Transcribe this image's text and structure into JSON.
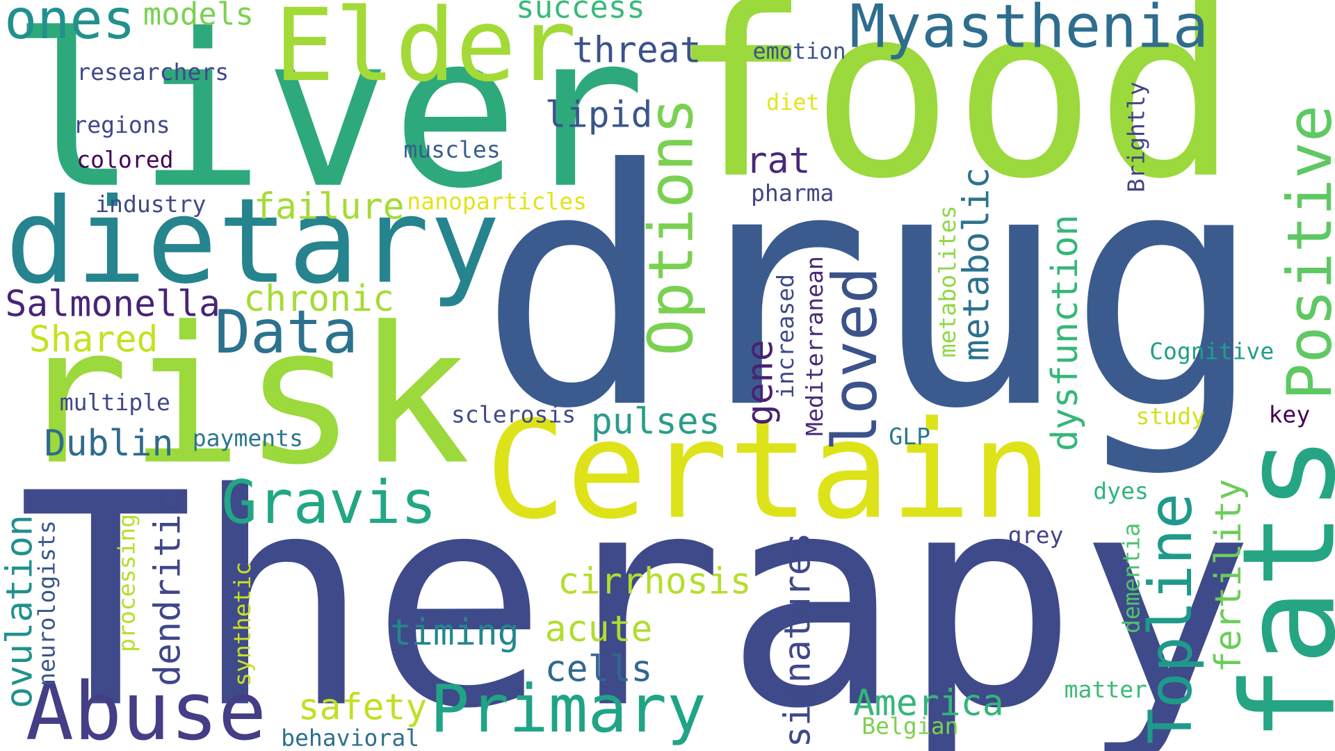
{
  "words": {
    "drug": {
      "text": "drug",
      "color": "#3b5b8f"
    },
    "therapy": {
      "text": "Therapy",
      "color": "#3f4a8a"
    },
    "food": {
      "text": "food",
      "color": "#9bd93c"
    },
    "liver": {
      "text": "liver",
      "color": "#2ea97c"
    },
    "risk": {
      "text": "risk",
      "color": "#9bd93c"
    },
    "dietary": {
      "text": "dietary",
      "color": "#26848e"
    },
    "certain": {
      "text": "Certain",
      "color": "#dde318"
    },
    "fats": {
      "text": "fats",
      "color": "#25a584"
    },
    "elder": {
      "text": "Elder",
      "color": "#a3da37"
    },
    "myasthenia": {
      "text": "Myasthenia",
      "color": "#2e6d8e"
    },
    "abuse": {
      "text": "Abuse",
      "color": "#433e85"
    },
    "primary": {
      "text": "Primary",
      "color": "#20a486"
    },
    "positive": {
      "text": "Positive",
      "color": "#5ec962"
    },
    "topline": {
      "text": "Topline",
      "color": "#1f9a8a"
    },
    "options": {
      "text": "Options",
      "color": "#7ad151"
    },
    "loved": {
      "text": "loved",
      "color": "#3b528b"
    },
    "gravis": {
      "text": "Gravis",
      "color": "#22a785"
    },
    "data": {
      "text": "Data",
      "color": "#2c728e"
    },
    "ones": {
      "text": "ones",
      "color": "#21918c"
    },
    "salmonella": {
      "text": "Salmonella",
      "color": "#482475"
    },
    "chronic": {
      "text": "chronic",
      "color": "#a5db36"
    },
    "shared": {
      "text": "Shared",
      "color": "#c8e020"
    },
    "failure": {
      "text": "failure",
      "color": "#a5db36"
    },
    "threat": {
      "text": "threat",
      "color": "#3b528b"
    },
    "lipid": {
      "text": "lipid",
      "color": "#39568c"
    },
    "rat": {
      "text": "rat",
      "color": "#482878"
    },
    "metabolic": {
      "text": "metabolic",
      "color": "#2c728e"
    },
    "dysfunction": {
      "text": "dysfunction",
      "color": "#35b779"
    },
    "pulses": {
      "text": "pulses",
      "color": "#2a9d8a"
    },
    "gene": {
      "text": "gene",
      "color": "#482172"
    },
    "dublin": {
      "text": "Dublin",
      "color": "#2f6b8e"
    },
    "cirrhosis": {
      "text": "cirrhosis",
      "color": "#b4de2c"
    },
    "acute": {
      "text": "acute",
      "color": "#b0dd2f"
    },
    "timing": {
      "text": "timing",
      "color": "#24868e"
    },
    "cells": {
      "text": "cells",
      "color": "#31688e"
    },
    "america": {
      "text": "America",
      "color": "#34b679"
    },
    "safety": {
      "text": "safety",
      "color": "#c2df23"
    },
    "signatures": {
      "text": "signatures",
      "color": "#3e4989"
    },
    "dendritic": {
      "text": "dendritic",
      "color": "#3f4788"
    },
    "ovulation": {
      "text": "ovulation",
      "color": "#21918c"
    },
    "fertility": {
      "text": "fertility",
      "color": "#6ccd5a"
    },
    "models": {
      "text": "models",
      "color": "#7ad151"
    },
    "success": {
      "text": "success",
      "color": "#3ab97a"
    },
    "emotion": {
      "text": "emotion",
      "color": "#3b528b"
    },
    "diet": {
      "text": "diet",
      "color": "#e5e419"
    },
    "researchers": {
      "text": "researchers",
      "color": "#3e4989"
    },
    "regions": {
      "text": "regions",
      "color": "#404688"
    },
    "colored": {
      "text": "colored",
      "color": "#440154"
    },
    "muscles": {
      "text": "muscles",
      "color": "#355f8d"
    },
    "industry": {
      "text": "industry",
      "color": "#3e4989"
    },
    "nanoparticles": {
      "text": "nanoparticles",
      "color": "#e2e418"
    },
    "pharma": {
      "text": "pharma",
      "color": "#414487"
    },
    "brightly": {
      "text": "Brightly",
      "color": "#414487"
    },
    "metabolites": {
      "text": "metabolites",
      "color": "#8fd744"
    },
    "increased": {
      "text": "increased",
      "color": "#3e4989"
    },
    "mediterranean": {
      "text": "Mediterranean",
      "color": "#482878"
    },
    "cognitive": {
      "text": "Cognitive",
      "color": "#1f9f88"
    },
    "key": {
      "text": "key",
      "color": "#440154"
    },
    "study": {
      "text": "study",
      "color": "#d2e21b"
    },
    "multiple": {
      "text": "multiple",
      "color": "#3e4989"
    },
    "sclerosis": {
      "text": "sclerosis",
      "color": "#3e4989"
    },
    "payments": {
      "text": "payments",
      "color": "#2a768e"
    },
    "glp": {
      "text": "GLP",
      "color": "#2a768e"
    },
    "dyes": {
      "text": "dyes",
      "color": "#2fb47c"
    },
    "grey": {
      "text": "grey",
      "color": "#414487"
    },
    "dementia": {
      "text": "dementia",
      "color": "#4ec36b"
    },
    "matter": {
      "text": "matter",
      "color": "#3bbb75"
    },
    "belgian": {
      "text": "Belgian",
      "color": "#7ad151"
    },
    "behavioral": {
      "text": "behavioral",
      "color": "#2d708e"
    },
    "neurologists": {
      "text": "neurologists",
      "color": "#39568c"
    },
    "processing": {
      "text": "processing",
      "color": "#b5de2b"
    },
    "synthetic": {
      "text": "synthetic",
      "color": "#c8e020"
    }
  }
}
